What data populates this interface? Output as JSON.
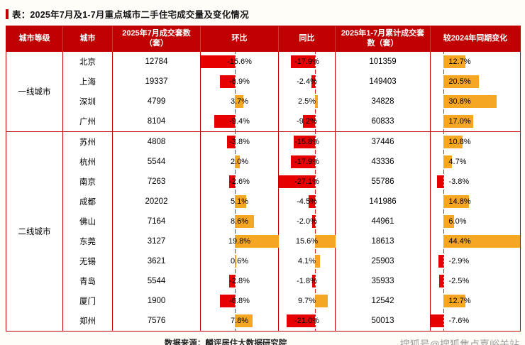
{
  "title": "表：2025年7月及1-7月重点城市二手住宅成交量及变化情况",
  "source": "数据来源：麟评居住大数据研究院",
  "watermark": "搜狐号@搜狐焦点嘉峪关站",
  "colors": {
    "header_bg": "#c00000",
    "border": "#c00000",
    "negative_bar": "#e60000",
    "positive_bar": "#f5a623"
  },
  "table": {
    "headers": [
      "城市等级",
      "城市",
      "2025年7月成交套数（套）",
      "环比",
      "同比",
      "2025年1-7月累计成交套数（套）",
      "较2024年同期变化"
    ],
    "groups": [
      {
        "tier": "一线城市",
        "rows": [
          {
            "city": "北京",
            "jul": "12784",
            "mom": -15.6,
            "yoy": -17.9,
            "cum": "101359",
            "vs2024": 12.7
          },
          {
            "city": "上海",
            "jul": "19337",
            "mom": -6.9,
            "yoy": -2.4,
            "cum": "149403",
            "vs2024": 20.5
          },
          {
            "city": "深圳",
            "jul": "4799",
            "mom": 3.7,
            "yoy": 2.5,
            "cum": "34828",
            "vs2024": 30.8
          },
          {
            "city": "广州",
            "jul": "8104",
            "mom": -9.4,
            "yoy": -9.2,
            "cum": "60833",
            "vs2024": 17.0
          }
        ]
      },
      {
        "tier": "二线城市",
        "rows": [
          {
            "city": "苏州",
            "jul": "4808",
            "mom": -3.8,
            "yoy": -15.8,
            "cum": "37446",
            "vs2024": 10.8
          },
          {
            "city": "杭州",
            "jul": "5544",
            "mom": 2.0,
            "yoy": -17.9,
            "cum": "43336",
            "vs2024": 4.7
          },
          {
            "city": "南京",
            "jul": "7263",
            "mom": -2.6,
            "yoy": -27.1,
            "cum": "55786",
            "vs2024": -3.8
          },
          {
            "city": "成都",
            "jul": "20202",
            "mom": 5.1,
            "yoy": -4.5,
            "cum": "141986",
            "vs2024": 14.8
          },
          {
            "city": "佛山",
            "jul": "7164",
            "mom": 8.6,
            "yoy": -2.0,
            "cum": "44961",
            "vs2024": 6.0
          },
          {
            "city": "东莞",
            "jul": "3127",
            "mom": 19.8,
            "yoy": 15.6,
            "cum": "18613",
            "vs2024": 44.4
          },
          {
            "city": "无锡",
            "jul": "3621",
            "mom": 0.6,
            "yoy": 4.1,
            "cum": "25903",
            "vs2024": -2.9
          },
          {
            "city": "青岛",
            "jul": "5544",
            "mom": -2.8,
            "yoy": -1.8,
            "cum": "35933",
            "vs2024": -2.5
          },
          {
            "city": "厦门",
            "jul": "1900",
            "mom": -6.8,
            "yoy": 9.7,
            "cum": "12542",
            "vs2024": 12.7
          },
          {
            "city": "郑州",
            "jul": "7576",
            "mom": 7.8,
            "yoy": -21.0,
            "cum": "50013",
            "vs2024": -7.6
          }
        ]
      }
    ]
  },
  "chart_data": {
    "type": "table",
    "title": "表：2025年7月及1-7月重点城市二手住宅成交量及变化情况",
    "columns": [
      "城市等级",
      "城市",
      "2025年7月成交套数（套）",
      "环比(%)",
      "同比(%)",
      "2025年1-7月累计成交套数（套）",
      "较2024年同期变化(%)"
    ],
    "rows": [
      [
        "一线城市",
        "北京",
        12784,
        -15.6,
        -17.9,
        101359,
        12.7
      ],
      [
        "一线城市",
        "上海",
        19337,
        -6.9,
        -2.4,
        149403,
        20.5
      ],
      [
        "一线城市",
        "深圳",
        4799,
        3.7,
        2.5,
        34828,
        30.8
      ],
      [
        "一线城市",
        "广州",
        8104,
        -9.4,
        -9.2,
        60833,
        17.0
      ],
      [
        "二线城市",
        "苏州",
        4808,
        -3.8,
        -15.8,
        37446,
        10.8
      ],
      [
        "二线城市",
        "杭州",
        5544,
        2.0,
        -17.9,
        43336,
        4.7
      ],
      [
        "二线城市",
        "南京",
        7263,
        -2.6,
        -27.1,
        55786,
        -3.8
      ],
      [
        "二线城市",
        "成都",
        20202,
        5.1,
        -4.5,
        141986,
        14.8
      ],
      [
        "二线城市",
        "佛山",
        7164,
        8.6,
        -2.0,
        44961,
        6.0
      ],
      [
        "二线城市",
        "东莞",
        3127,
        19.8,
        15.6,
        18613,
        44.4
      ],
      [
        "二线城市",
        "无锡",
        3621,
        0.6,
        4.1,
        25903,
        -2.9
      ],
      [
        "二线城市",
        "青岛",
        5544,
        -2.8,
        -1.8,
        35933,
        -2.5
      ],
      [
        "二线城市",
        "厦门",
        1900,
        -6.8,
        9.7,
        12542,
        12.7
      ],
      [
        "二线城市",
        "郑州",
        7576,
        7.8,
        -21.0,
        50013,
        -7.6
      ]
    ],
    "bar_style": "环比/同比/较2024年同期变化三列为单元格内数据条：负值红色条向左、正值橙色条向右，虚线为零轴"
  }
}
